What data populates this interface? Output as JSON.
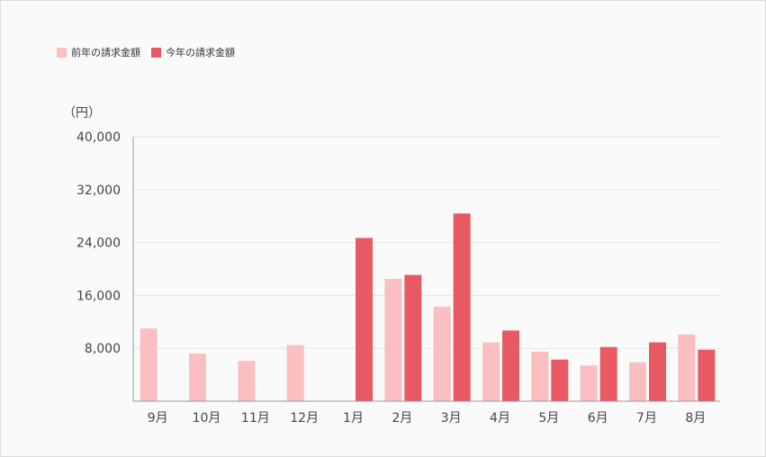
{
  "chart_data": {
    "type": "bar",
    "title": "",
    "xlabel": "",
    "ylabel": "（円）",
    "ylim": [
      0,
      40000
    ],
    "yticks": [
      8000,
      16000,
      24000,
      32000,
      40000
    ],
    "ytick_labels": [
      "8,000",
      "16,000",
      "24,000",
      "32,000",
      "40,000"
    ],
    "grid": true,
    "legend_position": "top-left",
    "categories": [
      "9月",
      "10月",
      "11月",
      "12月",
      "1月",
      "2月",
      "3月",
      "4月",
      "5月",
      "6月",
      "7月",
      "8月"
    ],
    "series": [
      {
        "name": "前年の請求金額",
        "color": "#fbbfc1",
        "values": [
          11000,
          7200,
          6100,
          8500,
          0,
          18500,
          14300,
          8900,
          7500,
          5400,
          5900,
          10100
        ]
      },
      {
        "name": "今年の請求金額",
        "color": "#e85a63",
        "values": [
          0,
          0,
          0,
          0,
          24700,
          19100,
          28400,
          10700,
          6300,
          8200,
          8900,
          7800
        ]
      }
    ]
  }
}
